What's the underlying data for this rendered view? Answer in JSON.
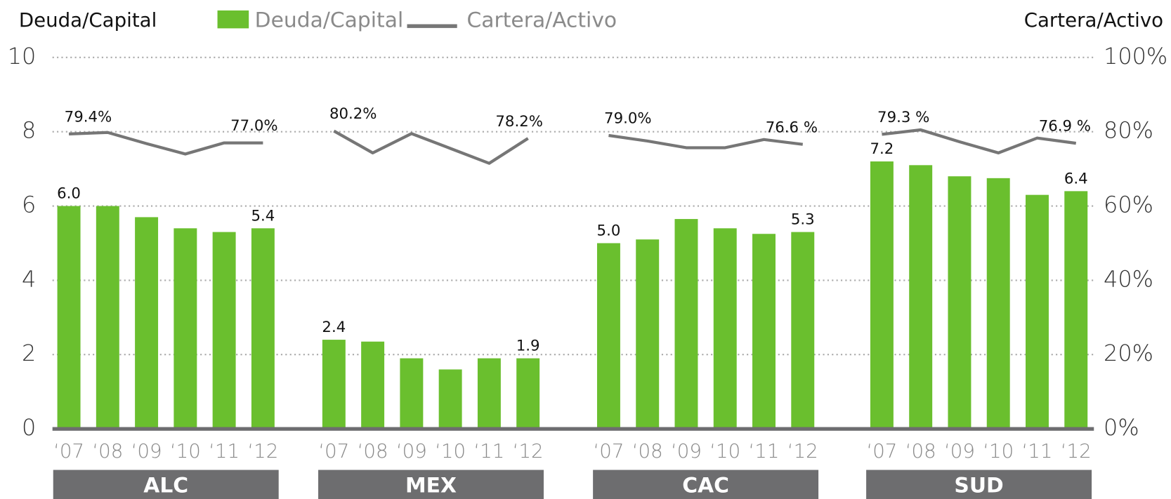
{
  "chart_data": {
    "type": "bar",
    "y_label": "Deuda/Capital",
    "y2_label": "Cartera/Activo",
    "series": [
      {
        "name": "Deuda/Capital",
        "color": "#6abf2e"
      },
      {
        "name": "Cartera/Activo",
        "color": "#767676",
        "axis": "y2"
      }
    ],
    "ylim": [
      0,
      10
    ],
    "yticks": [
      0,
      2,
      4,
      6,
      8,
      10
    ],
    "y2lim": [
      0,
      100
    ],
    "y2ticks": [
      {
        "value": 0,
        "label": "0%"
      },
      {
        "value": 20,
        "label": "20%"
      },
      {
        "value": 40,
        "label": "40%"
      },
      {
        "value": 60,
        "label": "60%"
      },
      {
        "value": 80,
        "label": "80%"
      },
      {
        "value": 100,
        "label": "100%"
      }
    ],
    "grid": true,
    "groups": [
      {
        "name": "ALC",
        "categories": [
          "‘07",
          "‘08",
          "‘09",
          "‘10",
          "‘11",
          "‘12"
        ],
        "values": [
          6.0,
          6.0,
          5.7,
          5.4,
          5.3,
          5.4
        ],
        "value_labels": [
          "6.0",
          null,
          null,
          null,
          null,
          "5.4"
        ],
        "y2_values": [
          79.4,
          79.8,
          76.8,
          74.0,
          77.0,
          77.0
        ],
        "y2_value_labels": [
          "79.4%",
          null,
          null,
          null,
          null,
          "77.0%"
        ]
      },
      {
        "name": "MEX",
        "categories": [
          "‘07",
          "‘08",
          "‘09",
          "‘10",
          "‘11",
          "‘12"
        ],
        "values": [
          2.4,
          2.35,
          1.9,
          1.6,
          1.9,
          1.9
        ],
        "value_labels": [
          "2.4",
          null,
          null,
          null,
          null,
          "1.9"
        ],
        "y2_values": [
          80.2,
          74.3,
          79.5,
          75.5,
          71.5,
          78.2
        ],
        "y2_value_labels": [
          "80.2%",
          null,
          null,
          null,
          null,
          "78.2%"
        ]
      },
      {
        "name": "CAC",
        "categories": [
          "‘07",
          "‘08",
          "‘09",
          "‘10",
          "‘11",
          "‘12"
        ],
        "values": [
          5.0,
          5.1,
          5.65,
          5.4,
          5.25,
          5.3
        ],
        "value_labels": [
          "5.0",
          null,
          null,
          null,
          null,
          "5.3"
        ],
        "y2_values": [
          79.0,
          77.5,
          75.7,
          75.7,
          77.9,
          76.6
        ],
        "y2_value_labels": [
          "79.0%",
          null,
          null,
          null,
          null,
          "76.6 %"
        ]
      },
      {
        "name": "SUD",
        "categories": [
          "‘07",
          "‘08",
          "‘09",
          "‘10",
          "‘11",
          "‘12"
        ],
        "values": [
          7.2,
          7.1,
          6.8,
          6.75,
          6.3,
          6.4
        ],
        "value_labels": [
          "7.2",
          null,
          null,
          null,
          null,
          "6.4"
        ],
        "y2_values": [
          79.3,
          80.5,
          77.3,
          74.3,
          78.3,
          76.9
        ],
        "y2_value_labels": [
          "79.3 %",
          null,
          null,
          null,
          null,
          "76.9 %"
        ]
      }
    ]
  }
}
